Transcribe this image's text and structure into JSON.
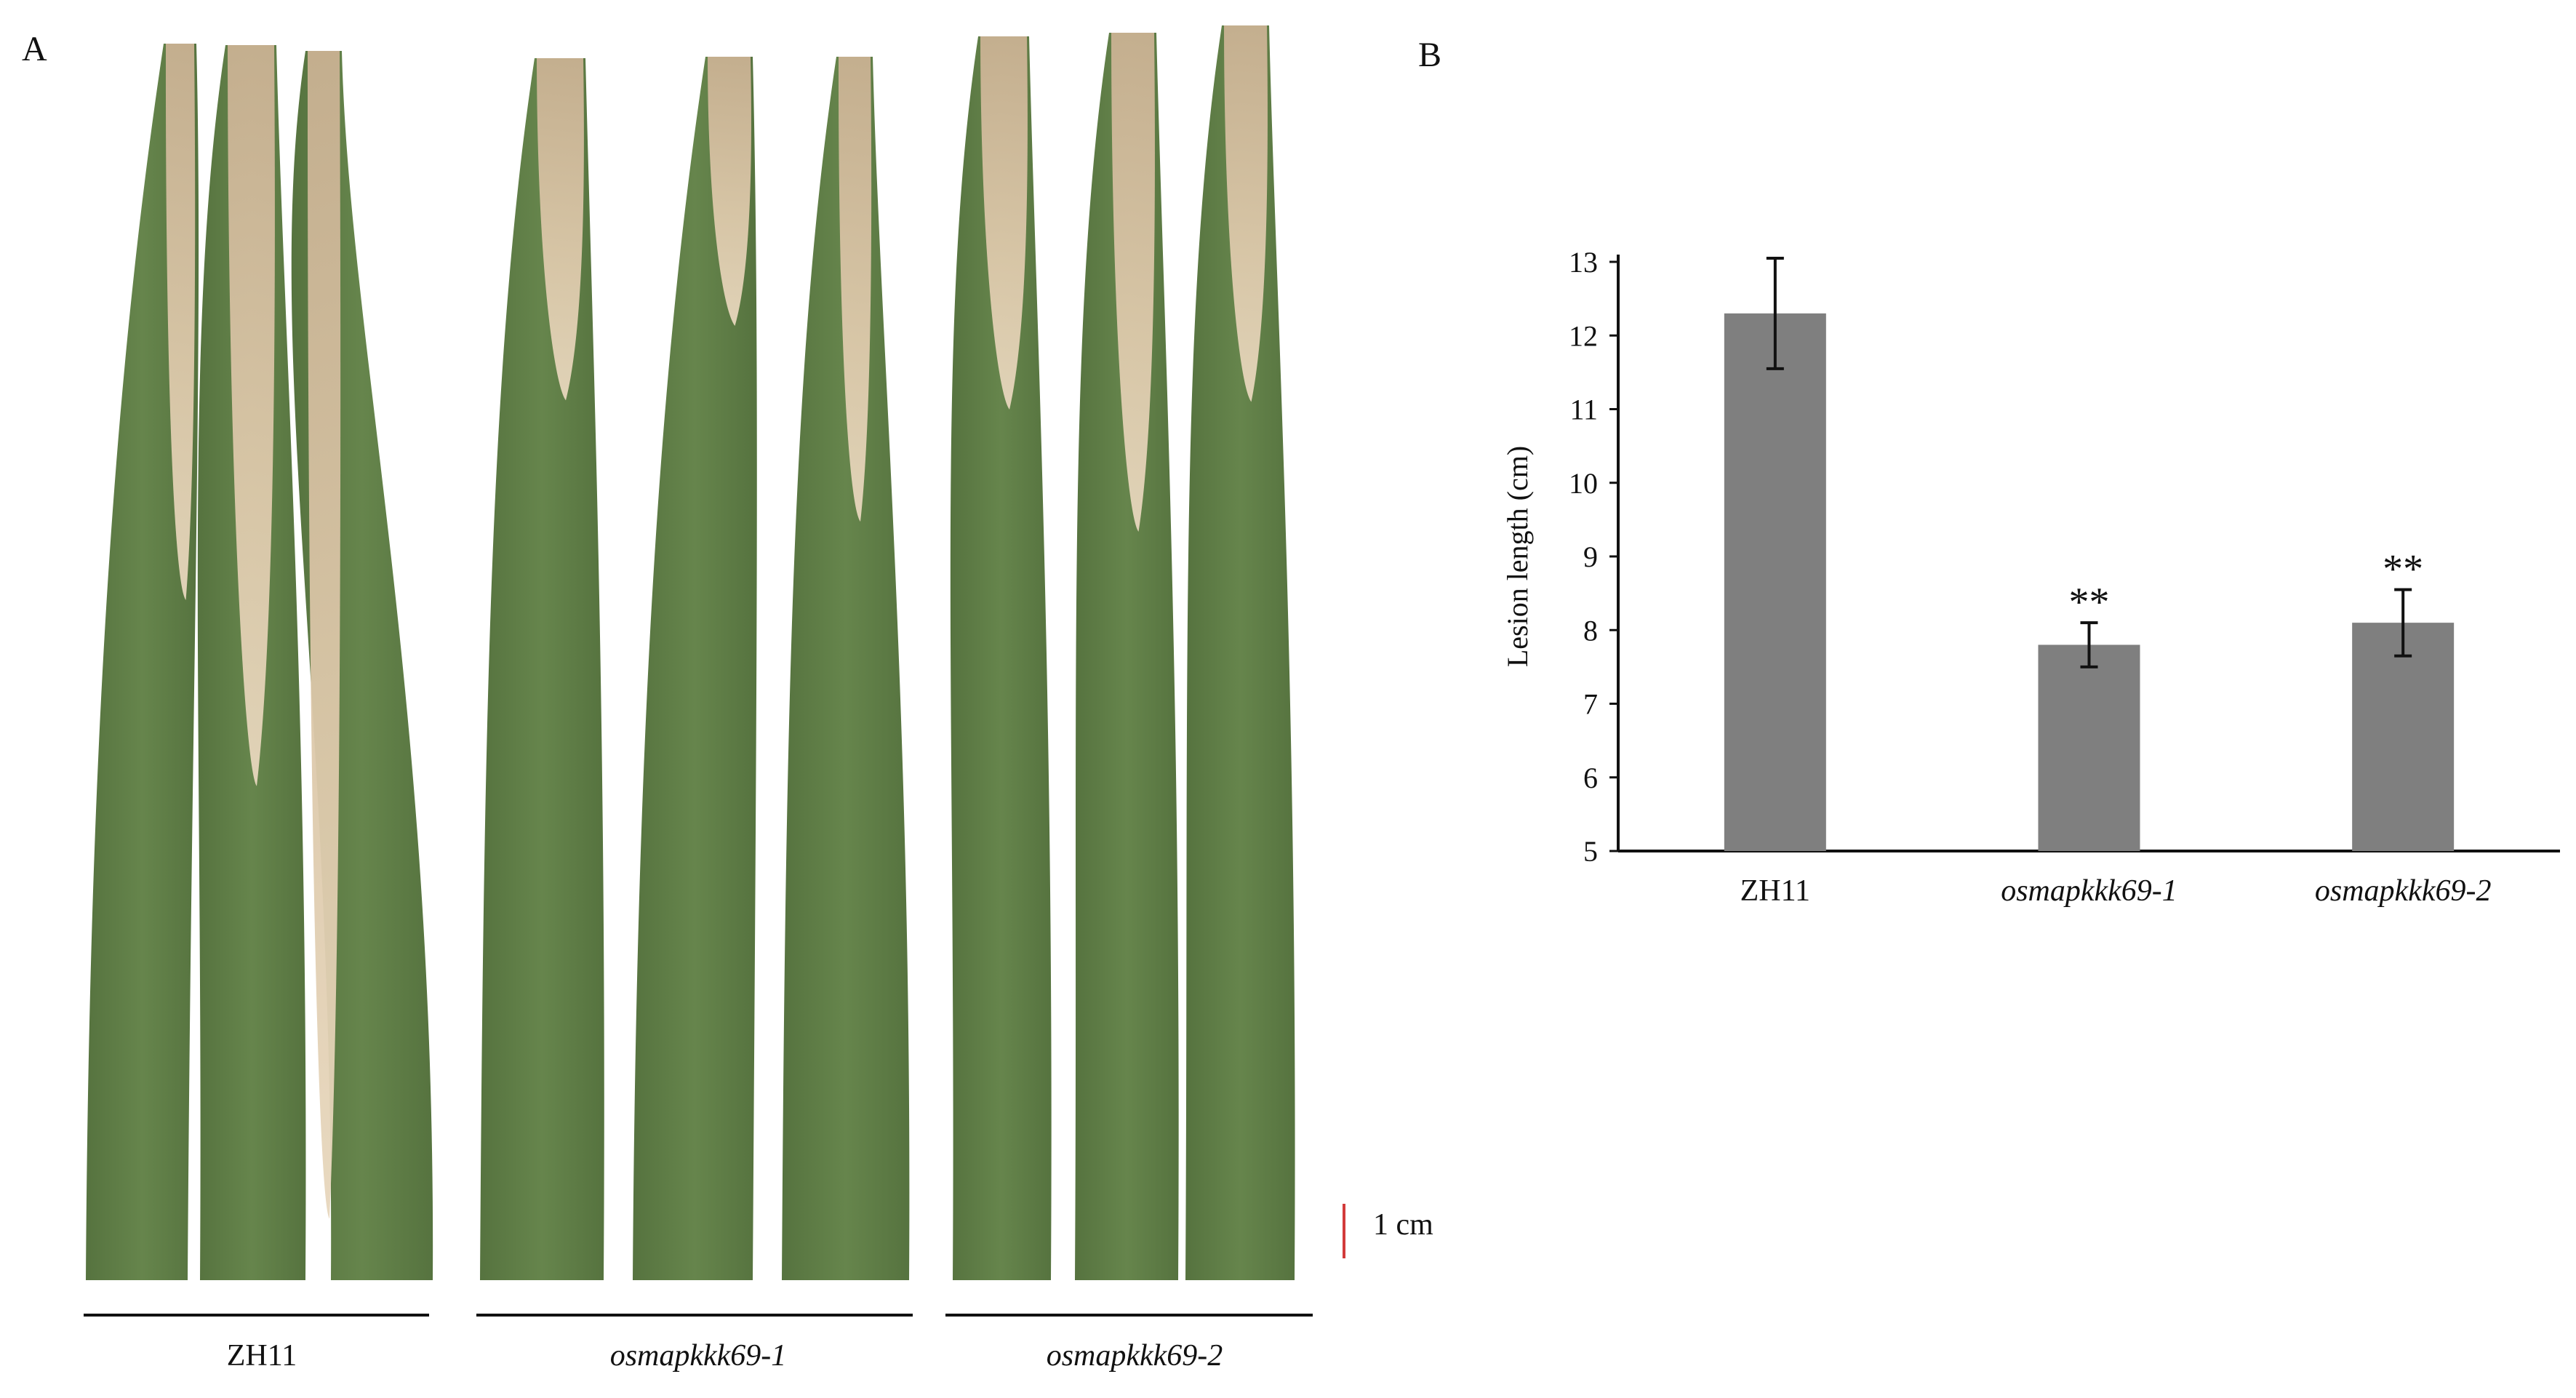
{
  "figure": {
    "panel_a_letter": "A",
    "panel_b_letter": "B",
    "scale_bar_label": "1 cm",
    "groups": [
      {
        "label": "ZH11",
        "italic": false
      },
      {
        "label": "osmapkkk69-1",
        "italic": true
      },
      {
        "label": "osmapkkk69-2",
        "italic": true
      }
    ],
    "colors": {
      "leaf_green": "#5f7d46",
      "lesion_tan": "#d8c3a5",
      "bar_gray": "#7f7f7f",
      "scale_red": "#d23b3b"
    }
  },
  "chart_data": {
    "type": "bar",
    "categories": [
      "ZH11",
      "osmapkkk69-1",
      "osmapkkk69-2"
    ],
    "values": [
      12.3,
      7.8,
      8.1
    ],
    "errors": [
      0.75,
      0.3,
      0.45
    ],
    "significance": [
      "",
      "**",
      "**"
    ],
    "ylabel": "Lesion length (cm)",
    "ylim": [
      5,
      13
    ],
    "yticks": [
      5,
      6,
      7,
      8,
      9,
      10,
      11,
      12,
      13
    ],
    "grid": false
  }
}
